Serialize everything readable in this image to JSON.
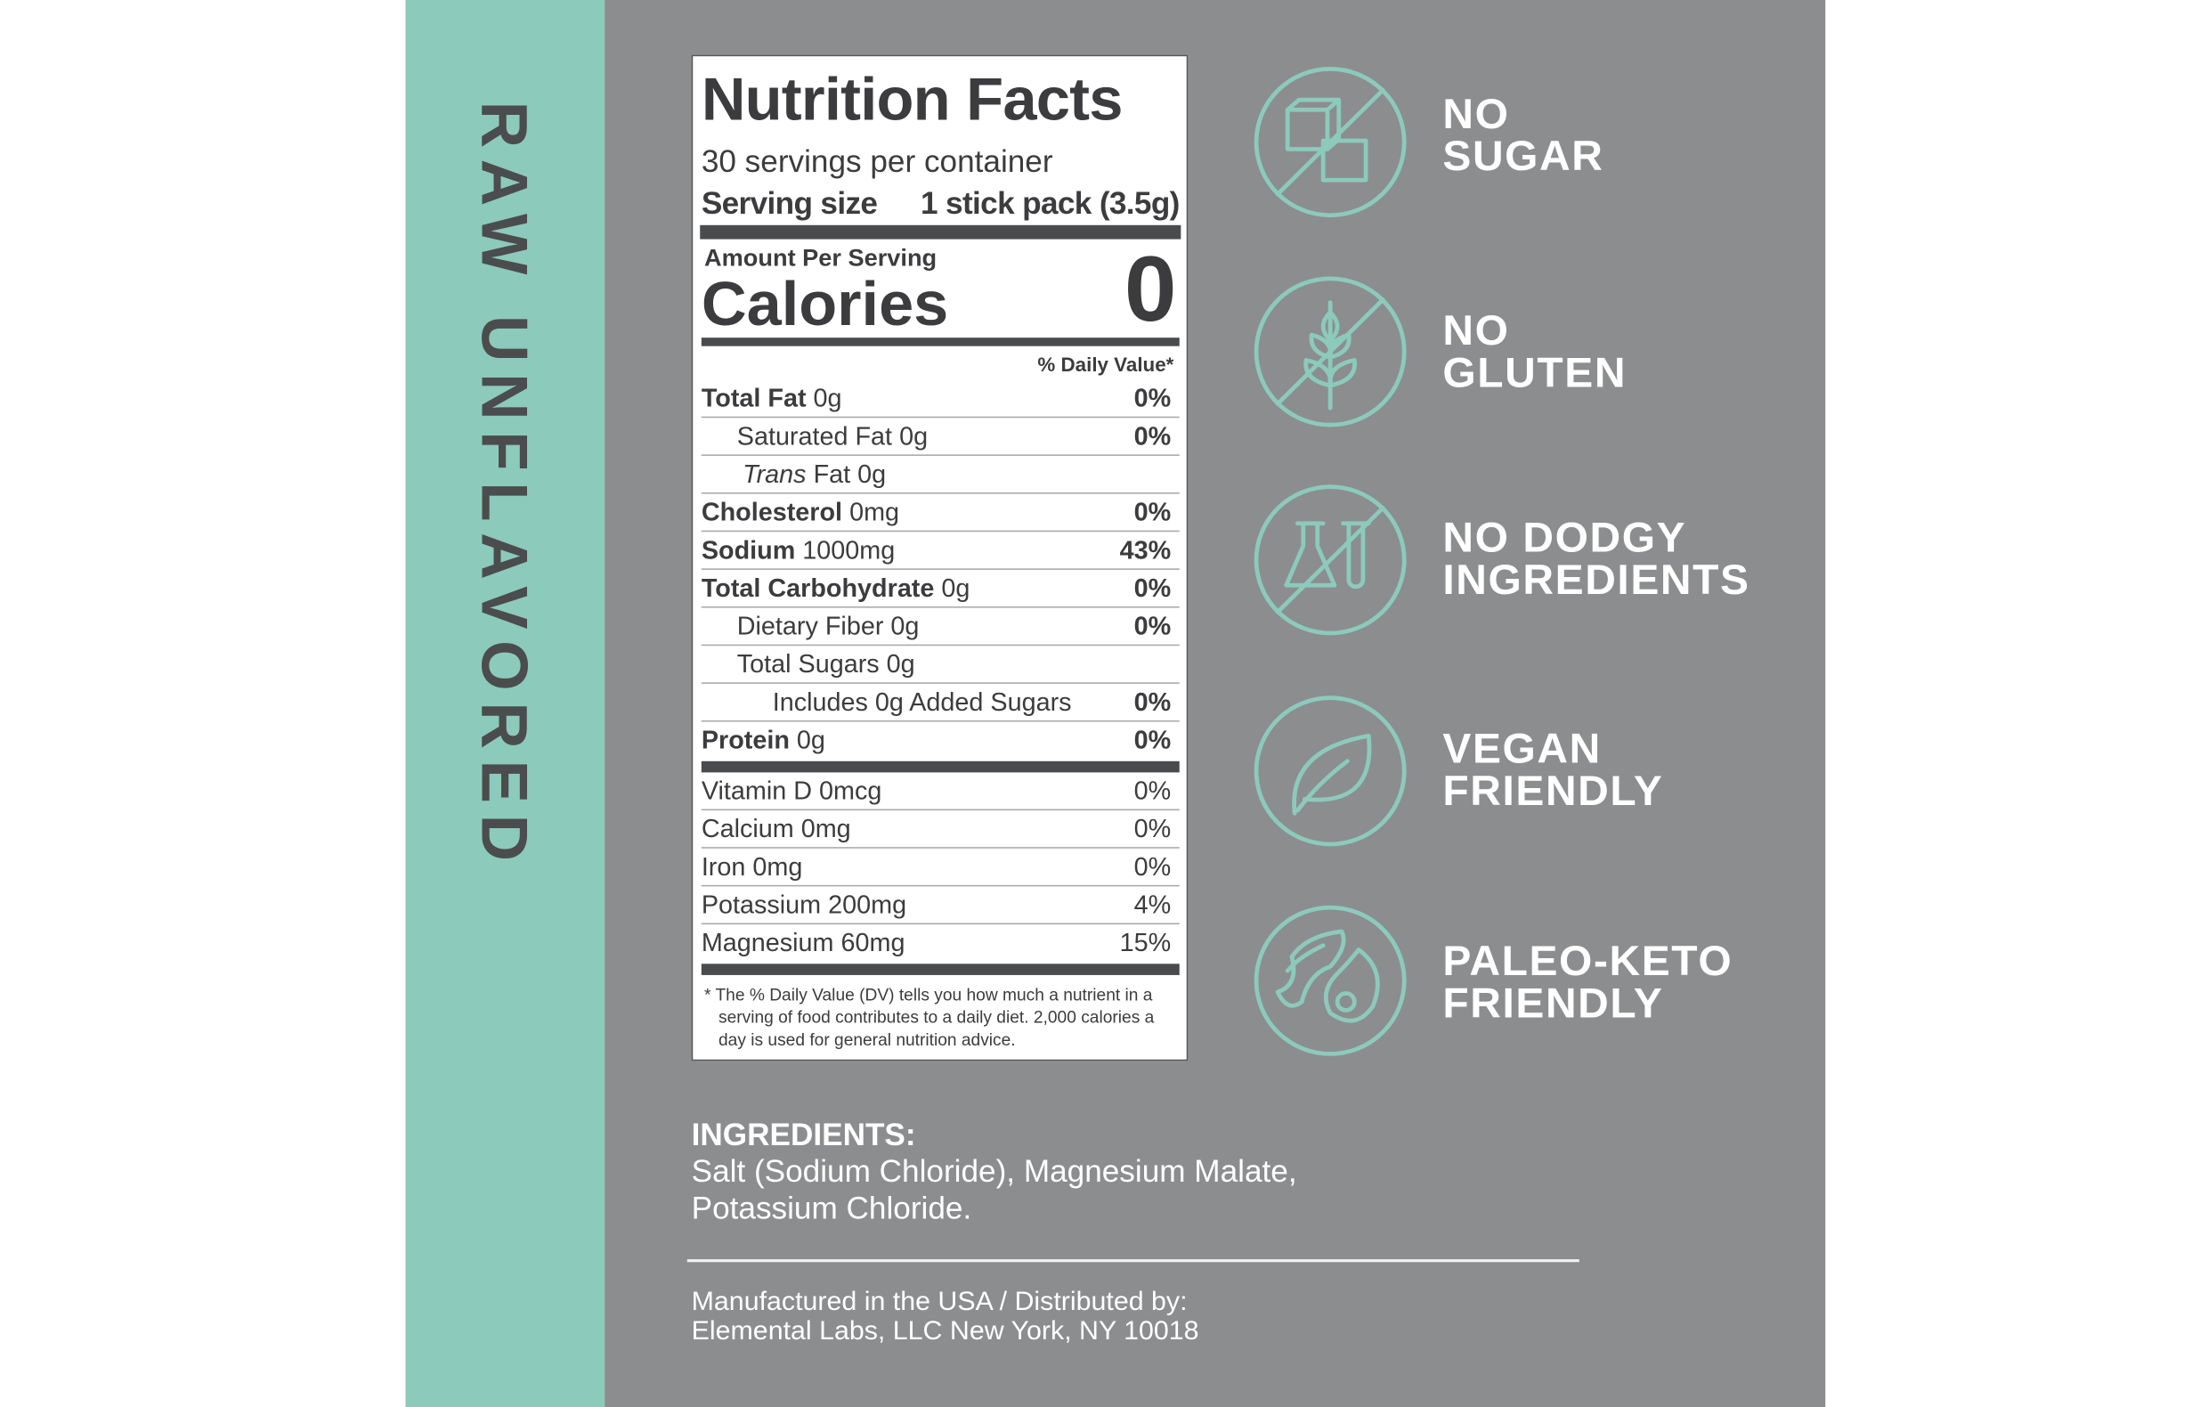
{
  "side_label": "RAW UNFLAVORED",
  "nutrition": {
    "title": "Nutrition Facts",
    "servings": "30 servings per container",
    "serving_size_label": "Serving size",
    "serving_size_value": "1 stick pack (3.5g)",
    "amount_per_serving": "Amount Per Serving",
    "calories_label": "Calories",
    "calories_value": "0",
    "dv_header": "% Daily Value*",
    "rows": [
      {
        "name": "Total Fat",
        "amount": "0g",
        "dv": "0%"
      },
      {
        "name": "Saturated Fat",
        "amount": "0g",
        "dv": "0%"
      },
      {
        "name": "Trans",
        "amount": "Fat 0g",
        "dv": ""
      },
      {
        "name": "Cholesterol",
        "amount": "0mg",
        "dv": "0%"
      },
      {
        "name": "Sodium",
        "amount": "1000mg",
        "dv": "43%"
      },
      {
        "name": "Total Carbohydrate",
        "amount": "0g",
        "dv": "0%"
      },
      {
        "name": "Dietary Fiber",
        "amount": "0g",
        "dv": "0%"
      },
      {
        "name": "Total Sugars",
        "amount": "0g",
        "dv": ""
      },
      {
        "name": "Includes 0g Added Sugars",
        "amount": "",
        "dv": "0%"
      },
      {
        "name": "Protein",
        "amount": "0g",
        "dv": "0%"
      }
    ],
    "vitamins": [
      {
        "name": "Vitamin D",
        "amount": "0mcg",
        "dv": "0%"
      },
      {
        "name": "Calcium",
        "amount": "0mg",
        "dv": "0%"
      },
      {
        "name": "Iron",
        "amount": "0mg",
        "dv": "0%"
      },
      {
        "name": "Potassium",
        "amount": "200mg",
        "dv": "4%"
      },
      {
        "name": "Magnesium",
        "amount": "60mg",
        "dv": "15%"
      }
    ],
    "footnote": "* The % Daily Value (DV) tells you how much a nutrient in a serving of food contributes to a daily diet. 2,000 calories a day is used for general nutrition advice."
  },
  "claims": [
    {
      "lines": [
        "NO",
        "SUGAR"
      ]
    },
    {
      "lines": [
        "NO",
        "GLUTEN"
      ]
    },
    {
      "lines": [
        "NO DODGY",
        "INGREDIENTS"
      ]
    },
    {
      "lines": [
        "VEGAN",
        "FRIENDLY"
      ]
    },
    {
      "lines": [
        "PALEO-KETO",
        "FRIENDLY"
      ]
    }
  ],
  "ingredients": {
    "heading": "INGREDIENTS:",
    "text": "Salt (Sodium Chloride), Magnesium Malate, Potassium Chloride."
  },
  "manufacturer": {
    "line1": "Manufactured in the USA / Distributed by:",
    "line2": "Elemental Labs, LLC New York, NY 10018"
  }
}
